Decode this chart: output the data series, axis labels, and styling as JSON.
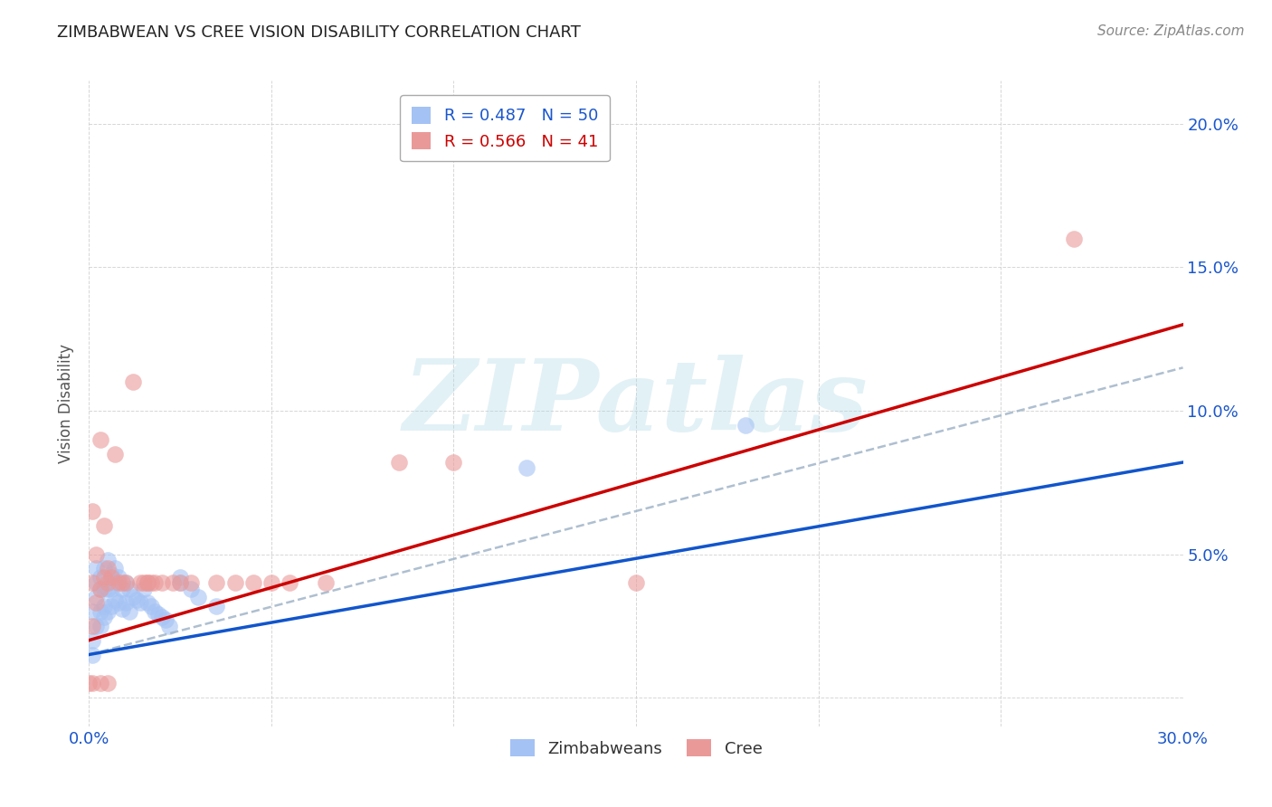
{
  "title": "ZIMBABWEAN VS CREE VISION DISABILITY CORRELATION CHART",
  "source": "Source: ZipAtlas.com",
  "ylabel": "Vision Disability",
  "xlim": [
    0.0,
    0.3
  ],
  "ylim": [
    -0.01,
    0.215
  ],
  "zim_R": 0.487,
  "zim_N": 50,
  "cree_R": 0.566,
  "cree_N": 41,
  "zim_color": "#a4c2f4",
  "cree_color": "#ea9999",
  "zim_line_color": "#1155cc",
  "cree_line_color": "#cc0000",
  "dash_color": "#a0b4c8",
  "background": "#ffffff",
  "grid_color": "#cccccc",
  "watermark": "ZIPatlas",
  "zim_line_x0": 0.0,
  "zim_line_y0": 0.015,
  "zim_line_x1": 0.3,
  "zim_line_y1": 0.082,
  "cree_line_x0": 0.0,
  "cree_line_y0": 0.02,
  "cree_line_x1": 0.3,
  "cree_line_y1": 0.13,
  "dash_line_x0": 0.0,
  "dash_line_y0": 0.015,
  "dash_line_x1": 0.3,
  "dash_line_y1": 0.115,
  "zim_scatter_x": [
    0.001,
    0.001,
    0.001,
    0.002,
    0.002,
    0.002,
    0.002,
    0.003,
    0.003,
    0.003,
    0.003,
    0.004,
    0.004,
    0.004,
    0.004,
    0.005,
    0.005,
    0.005,
    0.006,
    0.006,
    0.006,
    0.007,
    0.007,
    0.007,
    0.008,
    0.008,
    0.009,
    0.009,
    0.01,
    0.01,
    0.011,
    0.011,
    0.012,
    0.013,
    0.014,
    0.015,
    0.016,
    0.017,
    0.018,
    0.019,
    0.02,
    0.021,
    0.022,
    0.025,
    0.025,
    0.028,
    0.03,
    0.035,
    0.12,
    0.18
  ],
  "zim_scatter_y": [
    0.02,
    0.03,
    0.015,
    0.025,
    0.035,
    0.04,
    0.045,
    0.025,
    0.03,
    0.038,
    0.042,
    0.028,
    0.032,
    0.038,
    0.045,
    0.03,
    0.038,
    0.048,
    0.032,
    0.038,
    0.043,
    0.034,
    0.04,
    0.045,
    0.033,
    0.042,
    0.031,
    0.038,
    0.033,
    0.04,
    0.03,
    0.038,
    0.035,
    0.034,
    0.033,
    0.038,
    0.033,
    0.032,
    0.03,
    0.029,
    0.028,
    0.027,
    0.025,
    0.04,
    0.042,
    0.038,
    0.035,
    0.032,
    0.08,
    0.095
  ],
  "cree_scatter_x": [
    0.001,
    0.001,
    0.001,
    0.002,
    0.002,
    0.003,
    0.003,
    0.004,
    0.004,
    0.005,
    0.005,
    0.006,
    0.007,
    0.008,
    0.009,
    0.01,
    0.012,
    0.015,
    0.018,
    0.02,
    0.025,
    0.028,
    0.035,
    0.04,
    0.045,
    0.05,
    0.055,
    0.065,
    0.1,
    0.15,
    0.0,
    0.001,
    0.003,
    0.005,
    0.014,
    0.016,
    0.016,
    0.017,
    0.023,
    0.085,
    0.27
  ],
  "cree_scatter_y": [
    0.025,
    0.04,
    0.065,
    0.033,
    0.05,
    0.038,
    0.09,
    0.042,
    0.06,
    0.04,
    0.045,
    0.042,
    0.085,
    0.04,
    0.04,
    0.04,
    0.11,
    0.04,
    0.04,
    0.04,
    0.04,
    0.04,
    0.04,
    0.04,
    0.04,
    0.04,
    0.04,
    0.04,
    0.082,
    0.04,
    0.005,
    0.005,
    0.005,
    0.005,
    0.04,
    0.04,
    0.04,
    0.04,
    0.04,
    0.082,
    0.16
  ]
}
